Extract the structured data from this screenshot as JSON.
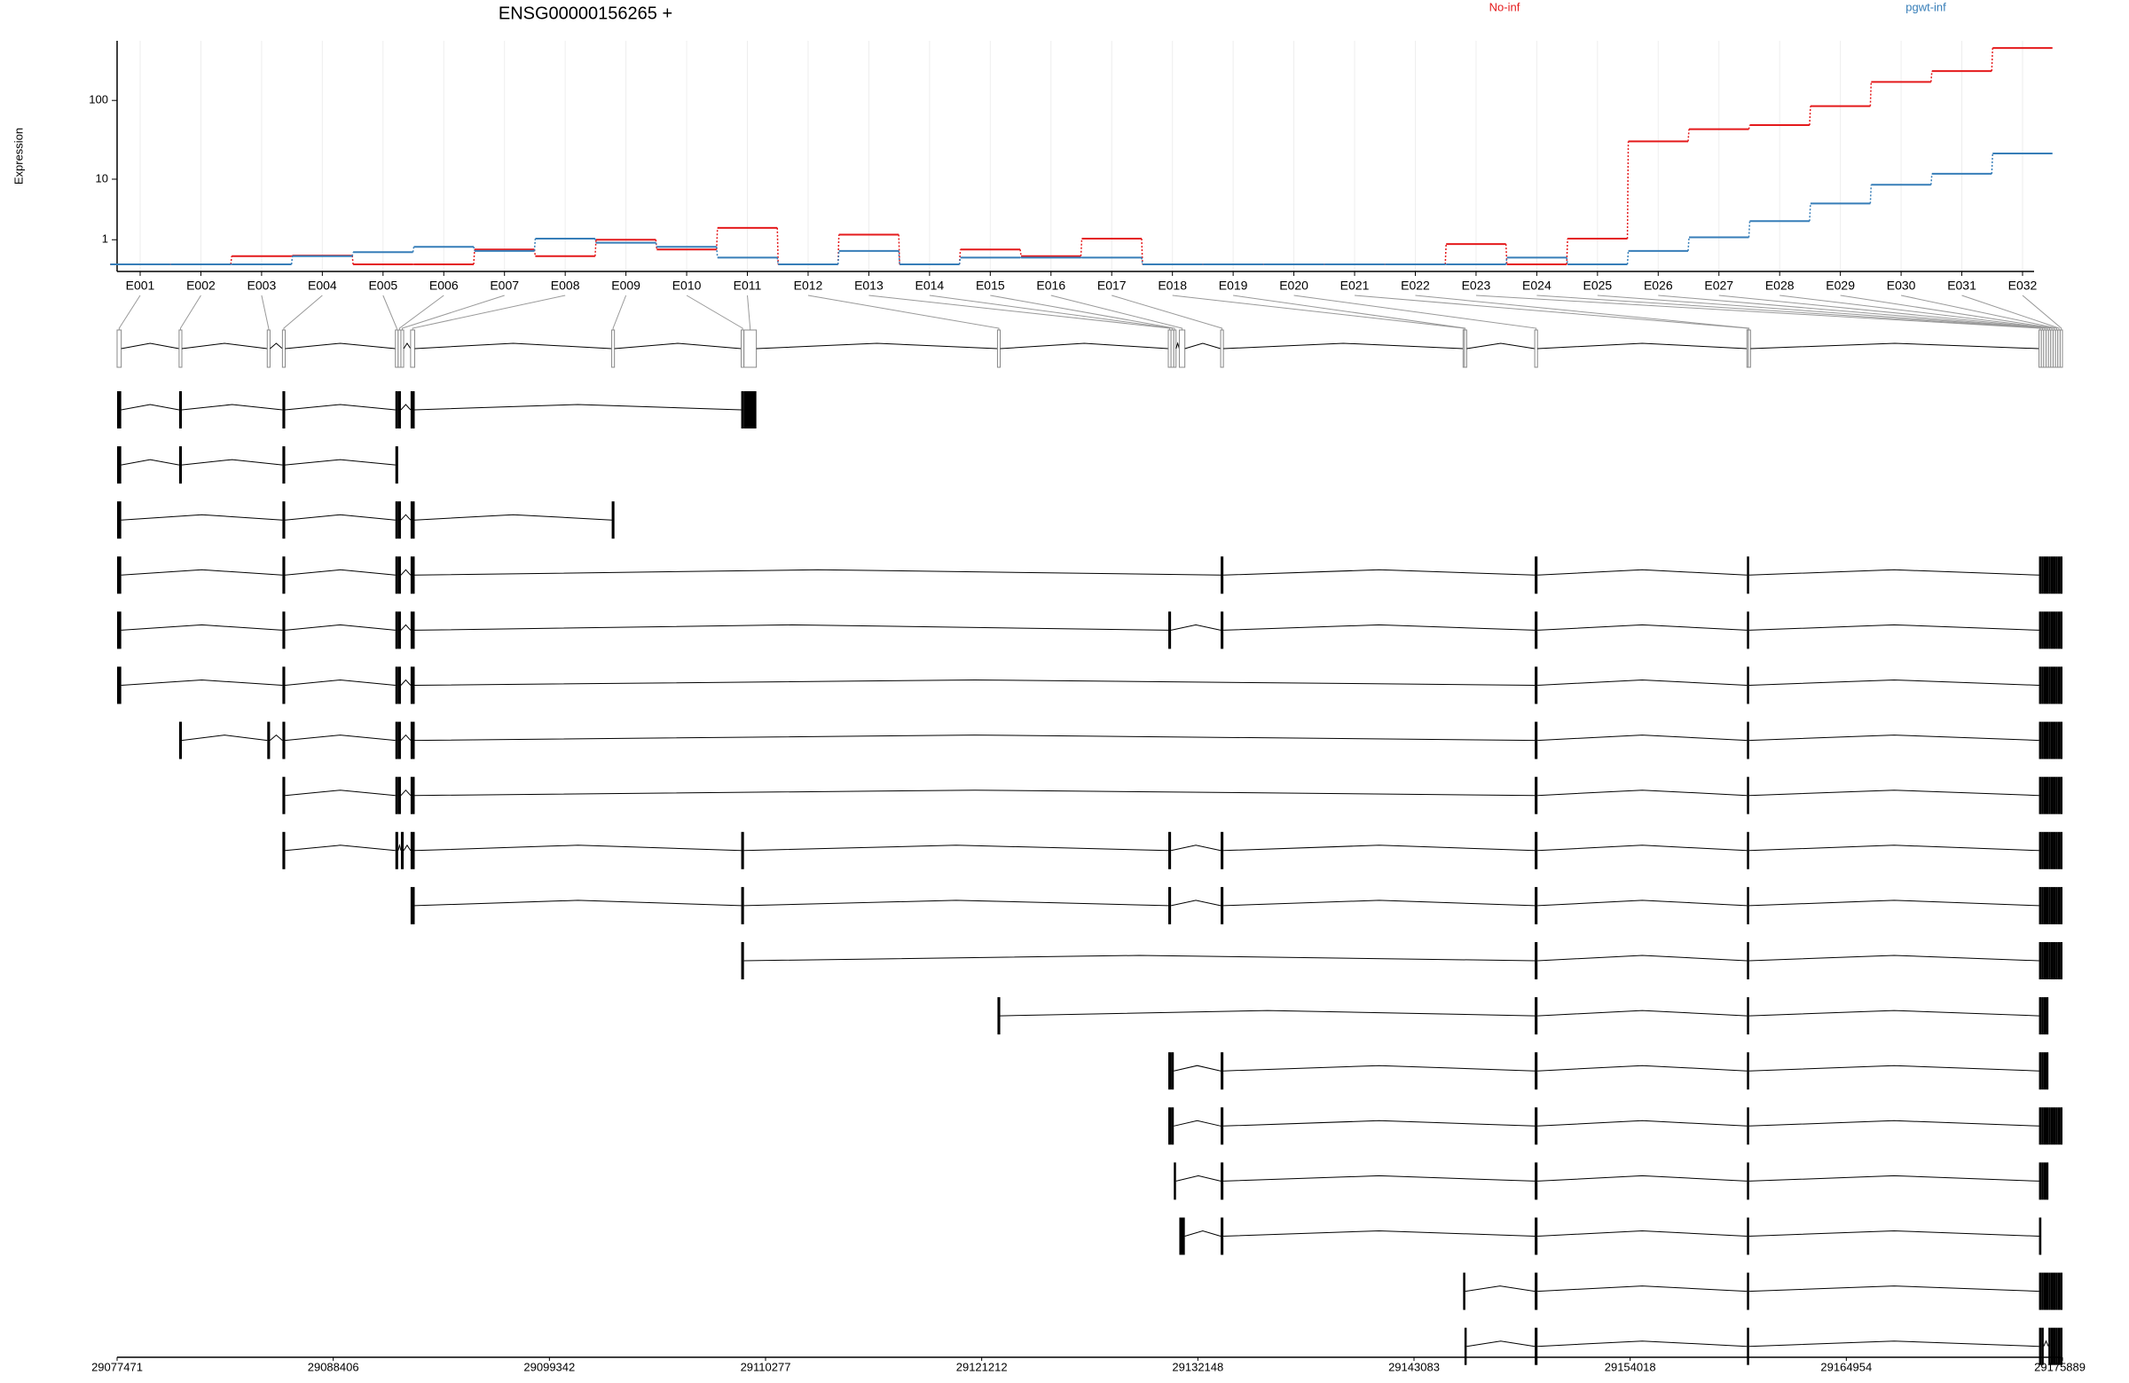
{
  "chart_data": {
    "type": "line",
    "title": "ENSG00000156265 +",
    "ylabel": "Expression",
    "yscale": "log1p",
    "ylim": [
      0,
      540
    ],
    "yticks": [
      1,
      10,
      100
    ],
    "grid": true,
    "categories": [
      "E001",
      "E002",
      "E003",
      "E004",
      "E005",
      "E006",
      "E007",
      "E008",
      "E009",
      "E010",
      "E011",
      "E012",
      "E013",
      "E014",
      "E015",
      "E016",
      "E017",
      "E018",
      "E019",
      "E020",
      "E021",
      "E022",
      "E023",
      "E024",
      "E025",
      "E026",
      "E027",
      "E028",
      "E029",
      "E030",
      "E031",
      "E032"
    ],
    "series": [
      {
        "name": "No-inf",
        "color": "#e41a1c",
        "values": [
          0,
          0,
          0.26,
          0.28,
          0,
          0,
          0.52,
          0.26,
          1.0,
          0.52,
          1.79,
          0,
          1.31,
          0,
          0.52,
          0.26,
          1.06,
          0,
          0,
          0,
          0,
          0,
          0.77,
          0,
          1.06,
          30.9,
          44,
          49.4,
          85,
          169,
          230,
          440
        ]
      },
      {
        "name": "pgwt-inf",
        "color": "#377eb8",
        "values": [
          0,
          0,
          0,
          0.26,
          0.41,
          0.64,
          0.46,
          1.06,
          0.84,
          0.64,
          0.21,
          0,
          0.46,
          0,
          0.21,
          0.21,
          0.21,
          0,
          0,
          0,
          0,
          0,
          0,
          0.21,
          0,
          0.46,
          1.14,
          2.38,
          4.55,
          8.4,
          11.8,
          21.7
        ]
      }
    ],
    "exons": [
      [
        29077471,
        29077680
      ],
      [
        29080608,
        29080747
      ],
      [
        29085068,
        29085208
      ],
      [
        29085835,
        29085975
      ],
      [
        29091550,
        29091690
      ],
      [
        29091690,
        29091830
      ],
      [
        29091830,
        29091969
      ],
      [
        29092320,
        29092527
      ],
      [
        29102494,
        29102633
      ],
      [
        29109045,
        29109185
      ],
      [
        29109185,
        29109812
      ],
      [
        29122010,
        29122149
      ],
      [
        29130652,
        29130791
      ],
      [
        29130791,
        29130931
      ],
      [
        29130931,
        29131001
      ],
      [
        29131210,
        29131489
      ],
      [
        29133301,
        29133440
      ],
      [
        29145567,
        29145636
      ],
      [
        29145636,
        29145706
      ],
      [
        29149191,
        29149331
      ],
      [
        29159925,
        29159995
      ],
      [
        29159995,
        29160064
      ],
      [
        29174702,
        29174821
      ],
      [
        29174821,
        29174940
      ],
      [
        29174940,
        29175059
      ],
      [
        29175059,
        29175178
      ],
      [
        29175178,
        29175297
      ],
      [
        29175297,
        29175416
      ],
      [
        29175416,
        29175535
      ],
      [
        29175535,
        29175654
      ],
      [
        29175654,
        29175773
      ],
      [
        29175773,
        29175889
      ]
    ],
    "transcripts": [
      [
        0,
        1,
        3,
        4,
        5,
        7,
        9,
        10
      ],
      [
        0,
        1,
        3,
        4
      ],
      [
        0,
        3,
        4,
        5,
        7,
        8
      ],
      [
        0,
        3,
        4,
        5,
        7,
        16,
        19,
        20,
        22,
        23,
        24,
        25,
        26,
        27,
        28,
        29,
        30,
        31
      ],
      [
        0,
        3,
        4,
        5,
        7,
        12,
        16,
        19,
        20,
        22,
        23,
        24,
        25,
        26,
        27,
        28,
        29,
        30,
        31
      ],
      [
        0,
        3,
        4,
        5,
        7,
        19,
        20,
        22,
        23,
        24,
        25,
        26,
        27,
        28,
        29,
        30,
        31
      ],
      [
        1,
        2,
        3,
        4,
        5,
        7,
        19,
        20,
        22,
        23,
        24,
        25,
        26,
        27,
        28,
        29,
        30,
        31
      ],
      [
        3,
        4,
        5,
        7,
        19,
        20,
        22,
        23,
        24,
        25,
        26,
        27,
        28,
        29,
        30,
        31
      ],
      [
        3,
        4,
        6,
        7,
        9,
        12,
        16,
        19,
        20,
        22,
        23,
        24,
        25,
        26,
        27,
        28,
        29,
        30,
        31
      ],
      [
        7,
        9,
        12,
        16,
        19,
        20,
        22,
        23,
        24,
        25,
        26,
        27,
        28,
        29,
        30,
        31
      ],
      [
        9,
        19,
        20,
        22,
        23,
        24,
        25,
        26,
        27,
        28,
        29,
        30,
        31
      ],
      [
        11,
        19,
        20,
        22,
        23,
        24,
        25
      ],
      [
        12,
        13,
        16,
        19,
        20,
        22,
        23,
        24,
        25
      ],
      [
        12,
        13,
        16,
        19,
        20,
        22,
        23,
        24,
        25,
        26,
        27,
        28,
        29,
        30,
        31
      ],
      [
        14,
        16,
        19,
        20,
        22,
        23,
        24,
        25
      ],
      [
        15,
        16,
        19,
        20,
        22
      ],
      [
        17,
        19,
        20,
        22,
        23,
        24,
        25,
        26,
        27,
        28,
        29,
        30,
        31
      ],
      [
        18,
        19,
        20,
        22,
        23,
        26,
        27,
        28,
        29,
        30,
        31
      ]
    ],
    "gxlim": [
      29077471,
      29175889
    ],
    "gxticks": [
      29077471,
      29088406,
      29099342,
      29110277,
      29121212,
      29132148,
      29143083,
      29154018,
      29164954,
      29175889
    ]
  }
}
